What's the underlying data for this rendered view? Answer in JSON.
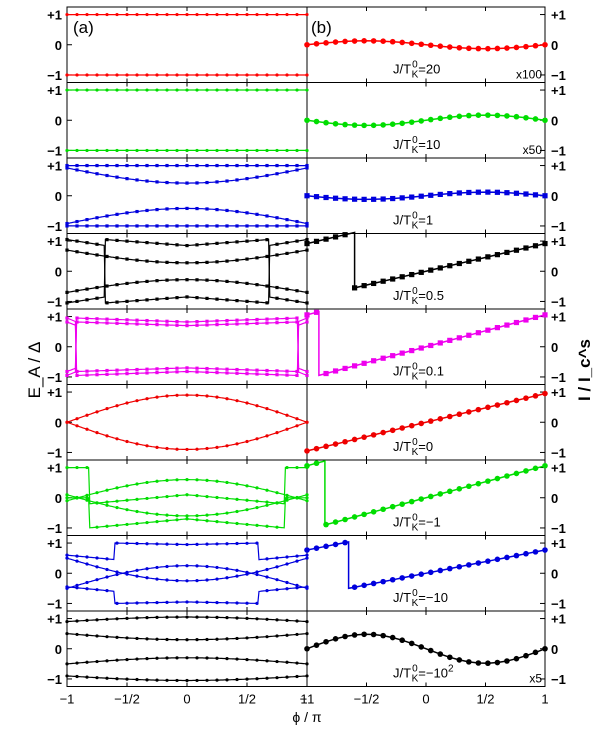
{
  "chart_data": {
    "type": "line",
    "xlabel": "ϕ / π",
    "ylabel_left": "E_A / Δ",
    "ylabel_right": "I / I_c^s",
    "panel_a_tag": "(a)",
    "panel_b_tag": "(b)",
    "xlim": [
      -1,
      1
    ],
    "ylim": [
      -1.25,
      1.25
    ],
    "x_ticks": [
      {
        "v": -1,
        "label": "−1"
      },
      {
        "v": -0.5,
        "label": "−1/2"
      },
      {
        "v": 0,
        "label": "0"
      },
      {
        "v": 0.5,
        "label": "1/2"
      },
      {
        "v": 1,
        "label": "1"
      }
    ],
    "y_ticks": [
      {
        "v": 1,
        "label": "+1"
      },
      {
        "v": 0,
        "label": "0"
      },
      {
        "v": -1,
        "label": "−1"
      }
    ],
    "rows": [
      {
        "j": "J/T",
        "k": "K",
        "s": "0",
        "val": "=20",
        "scale": "x100",
        "color": "#ff0000",
        "marker": "circle",
        "levels": [
          {
            "type": "flat",
            "value": 1
          },
          {
            "type": "flat",
            "value": -1
          }
        ],
        "current": {
          "type": "sine",
          "amp": -0.13
        }
      },
      {
        "j": "J/T",
        "k": "K",
        "s": "0",
        "val": "=10",
        "scale": "x50",
        "color": "#00dd00",
        "marker": "circle",
        "levels": [
          {
            "type": "flat",
            "value": 1
          },
          {
            "type": "flat",
            "value": -1
          }
        ],
        "current": {
          "type": "sine",
          "amp": 0.17
        }
      },
      {
        "j": "J/T",
        "k": "K",
        "s": "0",
        "val": "=1",
        "scale": "",
        "color": "#0000dd",
        "marker": "square",
        "levels": [
          {
            "type": "flat",
            "value": 1
          },
          {
            "type": "flat",
            "value": -1
          },
          {
            "type": "cos",
            "edge": 0.92,
            "mid": 0.42
          },
          {
            "type": "cos",
            "edge": -0.92,
            "mid": -0.42
          }
        ],
        "current": {
          "type": "sine",
          "amp": 0.12
        }
      },
      {
        "j": "J/T",
        "k": "K",
        "s": "0",
        "val": "=0.5",
        "scale": "",
        "color": "#000000",
        "marker": "square",
        "levels": [
          {
            "type": "jump",
            "a1": 0.85,
            "a2": 1.05,
            "b1": -1.05,
            "b2": -0.85,
            "xc": 0.68
          },
          {
            "type": "jump",
            "a1": -0.85,
            "a2": -1.05,
            "b1": 1.05,
            "b2": 0.85,
            "xc": 0.68
          },
          {
            "type": "cos",
            "edge": 0.7,
            "mid": 0.28
          },
          {
            "type": "cos",
            "edge": -0.7,
            "mid": -0.28
          }
        ],
        "current": {
          "type": "sawtooth",
          "xc": 0.6,
          "slope": 0.55
        }
      },
      {
        "j": "J/T",
        "k": "K",
        "s": "0",
        "val": "=0.1",
        "scale": "",
        "color": "#ee00ee",
        "marker": "square",
        "levels": [
          {
            "type": "jump",
            "a1": 0.82,
            "a2": 0.95,
            "b1": -0.95,
            "b2": -0.82,
            "xc": 0.92
          },
          {
            "type": "jump",
            "a1": 0.7,
            "a2": 0.82,
            "b1": -0.82,
            "b2": -0.7,
            "xc": 0.92
          },
          {
            "type": "jump",
            "a1": -0.7,
            "a2": -0.82,
            "b1": 0.82,
            "b2": 0.7,
            "xc": 0.92
          },
          {
            "type": "jump",
            "a1": -0.82,
            "a2": -0.95,
            "b1": 0.95,
            "b2": 0.82,
            "xc": 0.92
          }
        ],
        "current": {
          "type": "sawtooth",
          "xc": 0.9,
          "slope": 0.95
        }
      },
      {
        "j": "J/T",
        "k": "K",
        "s": "0",
        "val": "=0",
        "scale": "",
        "color": "#ee0000",
        "marker": "circle",
        "levels": [
          {
            "type": "andreev",
            "sign": 1
          },
          {
            "type": "andreev",
            "sign": -1
          }
        ],
        "current": {
          "type": "sawtooth",
          "xc": 1.0,
          "slope": 0.95
        }
      },
      {
        "j": "J/T",
        "k": "K",
        "s": "0",
        "val": "=−1",
        "scale": "",
        "color": "#00dd00",
        "marker": "circle",
        "levels": [
          {
            "type": "jump",
            "a1": 1.0,
            "a2": 1.0,
            "b1": -0.2,
            "b2": 0.1,
            "xc": 0.82
          },
          {
            "type": "jump",
            "a1": 0.0,
            "a2": 0.0,
            "b1": -1.0,
            "b2": -0.7,
            "xc": 0.82
          },
          {
            "type": "cos",
            "edge": -0.1,
            "mid": 0.6
          },
          {
            "type": "cos",
            "edge": 0.1,
            "mid": -0.6
          }
        ],
        "current": {
          "type": "sawtooth",
          "xc": 0.85,
          "slope": 0.9
        }
      },
      {
        "j": "J/T",
        "k": "K",
        "s": "0",
        "val": "=−10",
        "scale": "",
        "color": "#0000dd",
        "marker": "circle",
        "levels": [
          {
            "type": "jump",
            "a1": 0.45,
            "a2": 0.6,
            "b1": 1.0,
            "b2": 0.95,
            "xc": 0.6
          },
          {
            "type": "jump",
            "a1": -0.6,
            "a2": -0.45,
            "b1": -1.0,
            "b2": -0.95,
            "xc": 0.6
          },
          {
            "type": "cos",
            "edge": -0.5,
            "mid": 0.25
          },
          {
            "type": "cos",
            "edge": 0.5,
            "mid": -0.25
          }
        ],
        "current": {
          "type": "sawtooth",
          "xc": 0.65,
          "slope": 0.5
        }
      },
      {
        "j": "J/T",
        "k": "K",
        "s": "0",
        "val": "=−10",
        "val_sup": "2",
        "scale": "x5",
        "color": "#000000",
        "marker": "circle",
        "levels": [
          {
            "type": "cos",
            "edge": 0.9,
            "mid": 1.05
          },
          {
            "type": "cos",
            "edge": 0.5,
            "mid": 0.3
          },
          {
            "type": "cos",
            "edge": -0.5,
            "mid": -0.3
          },
          {
            "type": "cos",
            "edge": -0.9,
            "mid": -1.05
          }
        ],
        "current": {
          "type": "sine",
          "amp": -0.48
        }
      }
    ]
  }
}
